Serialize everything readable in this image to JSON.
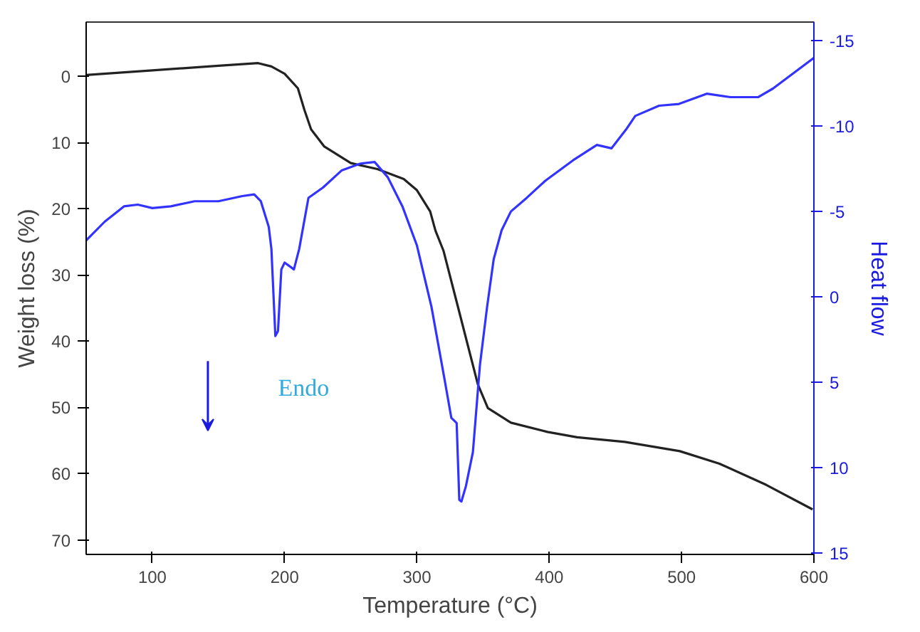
{
  "chart_data": {
    "type": "line",
    "xlabel": "Temperature (°C)",
    "ylabel": "Weight loss (%)",
    "y2label": "Heat flow",
    "xlim": [
      50,
      600
    ],
    "ylim": [
      72.2,
      -8.2
    ],
    "y2lim": [
      15.1,
      -16.1
    ],
    "xticks": [
      100,
      200,
      300,
      400,
      500,
      600
    ],
    "yticks": [
      0,
      10,
      20,
      30,
      40,
      50,
      60,
      70
    ],
    "y2ticks": [
      -15,
      -10,
      -5,
      0,
      5,
      10,
      15
    ],
    "grid": false,
    "line_style": "solid",
    "marker": "none",
    "annotations": [
      "Endo"
    ],
    "series": [
      {
        "color": "#222222",
        "x": [
          50,
          100,
          150,
          180,
          190,
          200,
          210,
          215,
          220,
          230,
          250,
          270,
          290,
          300,
          310,
          314,
          320,
          332,
          346,
          353.6,
          371,
          398.6,
          421,
          457,
          498.6,
          528.6,
          564,
          599
        ],
        "values": [
          -0.2,
          -0.9,
          -1.6,
          -2.0,
          -1.5,
          -0.4,
          1.8,
          5.1,
          8.0,
          10.6,
          13.1,
          14.0,
          15.5,
          17.2,
          20.4,
          23.3,
          26.3,
          35.6,
          46.5,
          50.1,
          52.3,
          53.7,
          54.5,
          55.2,
          56.6,
          58.5,
          61.7,
          65.4
        ]
      },
      {
        "color": "#3333ff",
        "axis": "y2",
        "x": [
          50,
          64,
          78.6,
          89,
          100,
          114,
          132,
          150,
          168,
          177,
          182,
          188,
          190,
          193,
          195,
          197.5,
          200,
          203.6,
          207,
          211,
          218,
          229,
          243,
          257,
          268,
          278,
          289,
          300,
          311,
          321,
          326,
          330,
          332,
          333.6,
          337,
          342.3,
          347.6,
          353,
          358,
          364,
          371,
          383,
          397,
          418,
          436,
          447,
          458,
          465,
          483,
          498,
          519,
          537,
          558,
          569,
          600
        ],
        "values": [
          -3.3,
          -4.4,
          -5.3,
          -5.4,
          -5.2,
          -5.3,
          -5.6,
          -5.6,
          -5.9,
          -6.0,
          -5.6,
          -4.1,
          -2.8,
          2.3,
          2.0,
          -1.6,
          -2.0,
          -1.8,
          -1.6,
          -2.8,
          -5.8,
          -6.4,
          -7.4,
          -7.8,
          -7.9,
          -7.0,
          -5.3,
          -3.0,
          0.6,
          4.9,
          7.1,
          7.4,
          11.9,
          12.0,
          11.1,
          9.1,
          4.0,
          0.6,
          -2.2,
          -3.9,
          -5.0,
          -5.8,
          -6.8,
          -8.0,
          -8.9,
          -8.7,
          -9.8,
          -10.6,
          -11.2,
          -11.3,
          -11.9,
          -11.7,
          -11.7,
          -12.2,
          -14.0
        ]
      }
    ]
  }
}
